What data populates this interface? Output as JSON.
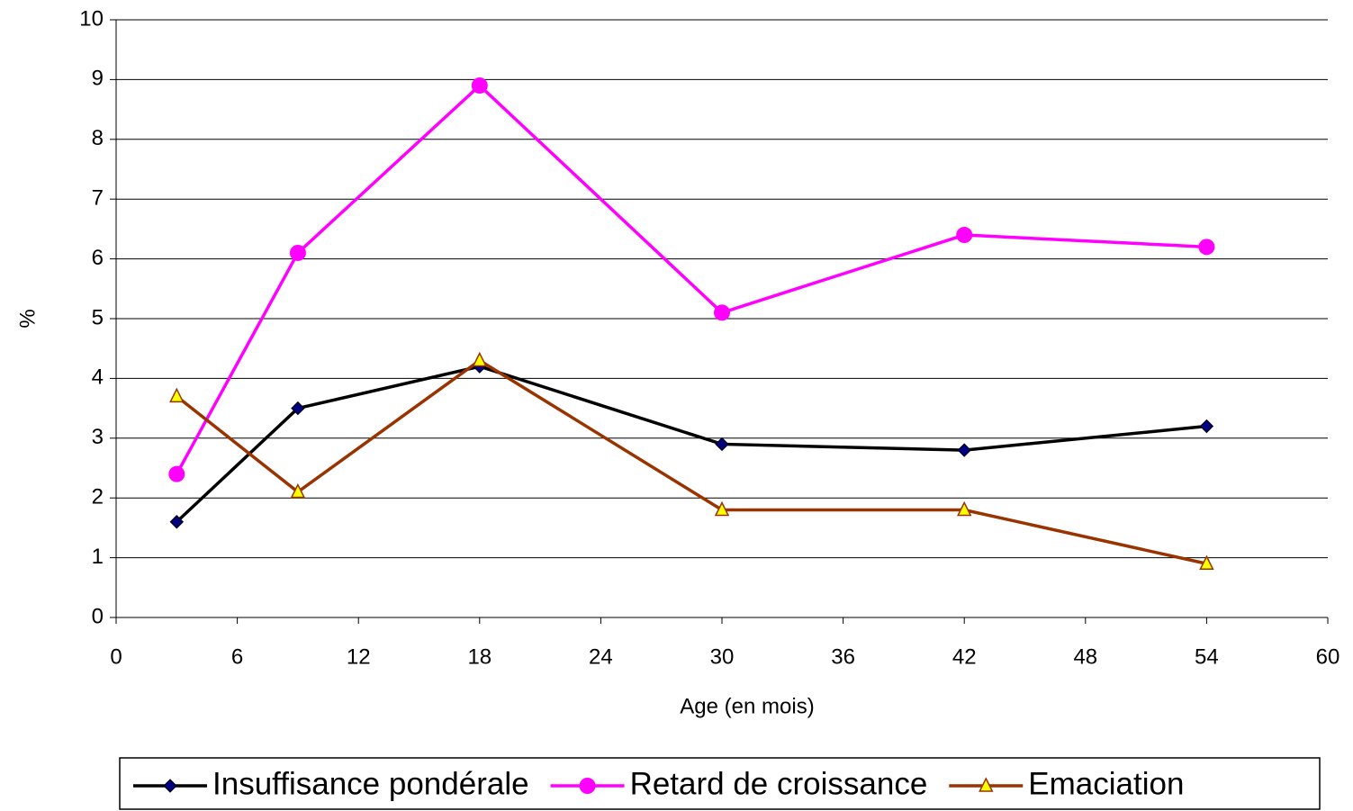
{
  "chart_data": {
    "type": "line",
    "x_label": "Age (en mois)",
    "y_label": "%",
    "x": [
      3,
      9,
      18,
      30,
      42,
      54
    ],
    "series": [
      {
        "name": "Insuffisance pondérale",
        "color": "#000000",
        "marker": "diamond",
        "marker_color": "#000080",
        "values": [
          1.6,
          3.5,
          4.2,
          2.9,
          2.8,
          3.2
        ]
      },
      {
        "name": "Retard de croissance",
        "color": "#FF00FF",
        "marker": "circle",
        "marker_color": "#FF00FF",
        "values": [
          2.4,
          6.1,
          8.9,
          5.1,
          6.4,
          6.2
        ]
      },
      {
        "name": "Emaciation",
        "color": "#993300",
        "marker": "triangle",
        "marker_color": "#FFFF00",
        "values": [
          3.7,
          2.1,
          4.3,
          1.8,
          1.8,
          0.9
        ]
      }
    ],
    "xlim": [
      0,
      60
    ],
    "xticks": [
      0,
      6,
      12,
      18,
      24,
      30,
      36,
      42,
      48,
      54,
      60
    ],
    "ylim": [
      0,
      10
    ],
    "yticks": [
      0,
      1,
      2,
      3,
      4,
      5,
      6,
      7,
      8,
      9,
      10
    ],
    "grid": true,
    "legend": "bottom"
  }
}
